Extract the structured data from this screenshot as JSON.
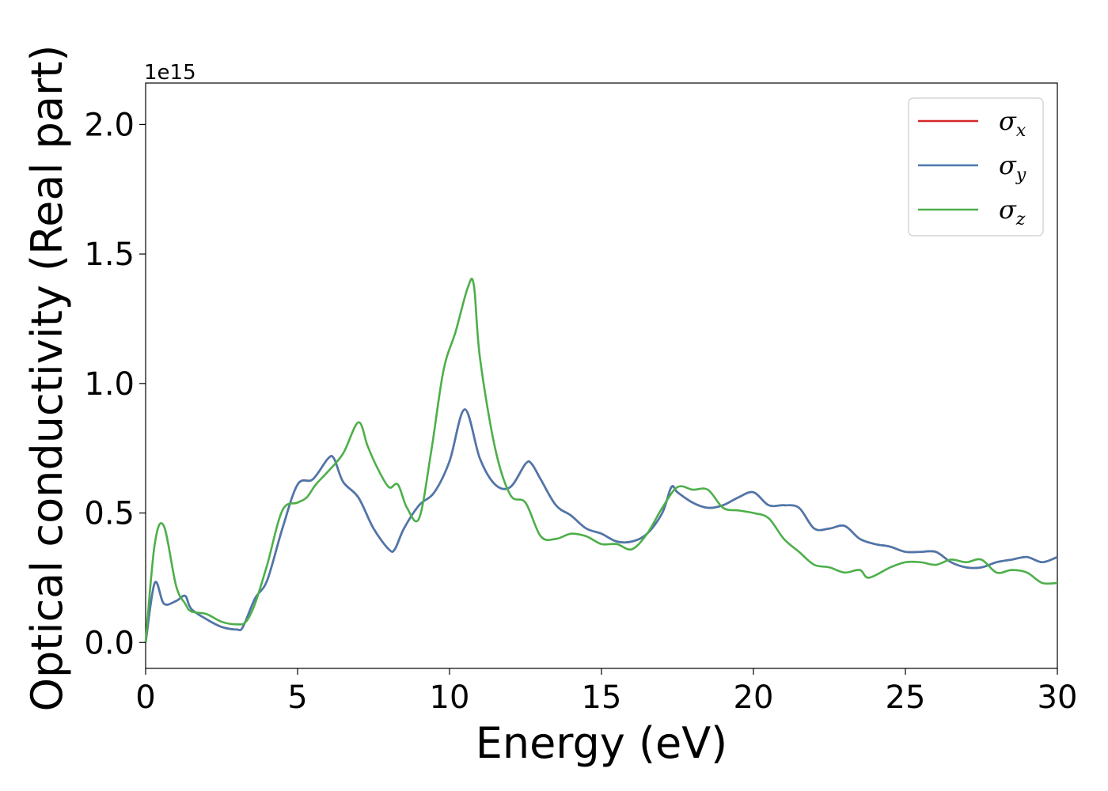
{
  "chart_data": {
    "type": "line",
    "title": "",
    "xlabel": "Energy (eV)",
    "ylabel": "Optical conductivity (Real part)",
    "y_offset_label": "1e15",
    "xlim": [
      0,
      30
    ],
    "ylim": [
      -0.1,
      2.16
    ],
    "xticks": [
      0,
      5,
      10,
      15,
      20,
      25,
      30
    ],
    "xtick_labels": [
      "0",
      "5",
      "10",
      "15",
      "20",
      "25",
      "30"
    ],
    "yticks": [
      0.0,
      0.5,
      1.0,
      1.5,
      2.0
    ],
    "ytick_labels": [
      "0.0",
      "0.5",
      "1.0",
      "1.5",
      "2.0"
    ],
    "grid": false,
    "legend_position": "top-right",
    "series": [
      {
        "name": "σx",
        "legend_base": "σ",
        "legend_sub": "x",
        "color": "#d62728",
        "x": [
          0,
          0.3,
          0.6,
          1.0,
          1.3,
          1.5,
          2.0,
          2.5,
          3.0,
          3.2,
          3.6,
          4.0,
          4.5,
          5.0,
          5.5,
          6.0,
          6.2,
          6.5,
          7.0,
          7.5,
          8.0,
          8.2,
          8.5,
          9.0,
          9.5,
          10.0,
          10.5,
          11.0,
          11.5,
          12.0,
          12.5,
          12.7,
          13.0,
          13.5,
          14.0,
          14.5,
          15.0,
          15.5,
          16.0,
          16.5,
          17.0,
          17.3,
          17.5,
          18.0,
          18.5,
          19.0,
          19.5,
          20.0,
          20.5,
          21.0,
          21.5,
          22.0,
          22.5,
          23.0,
          23.5,
          24.0,
          24.5,
          25.0,
          25.5,
          26.0,
          26.5,
          27.0,
          27.5,
          28.0,
          28.5,
          29.0,
          29.5,
          30.0
        ],
        "values": [
          0.0,
          0.23,
          0.15,
          0.16,
          0.18,
          0.13,
          0.09,
          0.06,
          0.05,
          0.06,
          0.17,
          0.24,
          0.44,
          0.61,
          0.63,
          0.71,
          0.71,
          0.62,
          0.56,
          0.44,
          0.36,
          0.36,
          0.44,
          0.53,
          0.58,
          0.7,
          0.9,
          0.71,
          0.61,
          0.6,
          0.69,
          0.69,
          0.63,
          0.53,
          0.49,
          0.44,
          0.42,
          0.39,
          0.39,
          0.42,
          0.5,
          0.6,
          0.58,
          0.54,
          0.52,
          0.53,
          0.56,
          0.58,
          0.53,
          0.53,
          0.52,
          0.44,
          0.44,
          0.45,
          0.4,
          0.38,
          0.37,
          0.35,
          0.35,
          0.35,
          0.31,
          0.29,
          0.29,
          0.31,
          0.32,
          0.33,
          0.31,
          0.33
        ]
      },
      {
        "name": "σy",
        "legend_base": "σ",
        "legend_sub": "y",
        "color": "#4a78ad",
        "x": [
          0,
          0.3,
          0.6,
          1.0,
          1.3,
          1.5,
          2.0,
          2.5,
          3.0,
          3.2,
          3.6,
          4.0,
          4.5,
          5.0,
          5.5,
          6.0,
          6.2,
          6.5,
          7.0,
          7.5,
          8.0,
          8.2,
          8.5,
          9.0,
          9.5,
          10.0,
          10.5,
          11.0,
          11.5,
          12.0,
          12.5,
          12.7,
          13.0,
          13.5,
          14.0,
          14.5,
          15.0,
          15.5,
          16.0,
          16.5,
          17.0,
          17.3,
          17.5,
          18.0,
          18.5,
          19.0,
          19.5,
          20.0,
          20.5,
          21.0,
          21.5,
          22.0,
          22.5,
          23.0,
          23.5,
          24.0,
          24.5,
          25.0,
          25.5,
          26.0,
          26.5,
          27.0,
          27.5,
          28.0,
          28.5,
          29.0,
          29.5,
          30.0
        ],
        "values": [
          0.0,
          0.23,
          0.15,
          0.16,
          0.18,
          0.13,
          0.09,
          0.06,
          0.05,
          0.06,
          0.17,
          0.24,
          0.44,
          0.61,
          0.63,
          0.71,
          0.71,
          0.62,
          0.56,
          0.44,
          0.36,
          0.36,
          0.44,
          0.53,
          0.58,
          0.7,
          0.9,
          0.71,
          0.61,
          0.6,
          0.69,
          0.69,
          0.63,
          0.53,
          0.49,
          0.44,
          0.42,
          0.39,
          0.39,
          0.42,
          0.5,
          0.6,
          0.58,
          0.54,
          0.52,
          0.53,
          0.56,
          0.58,
          0.53,
          0.53,
          0.52,
          0.44,
          0.44,
          0.45,
          0.4,
          0.38,
          0.37,
          0.35,
          0.35,
          0.35,
          0.31,
          0.29,
          0.29,
          0.31,
          0.32,
          0.33,
          0.31,
          0.33
        ]
      },
      {
        "name": "σz",
        "legend_base": "σ",
        "legend_sub": "z",
        "color": "#4daf4a",
        "x": [
          0,
          0.3,
          0.6,
          1.0,
          1.3,
          1.5,
          2.0,
          2.5,
          3.0,
          3.3,
          3.6,
          4.0,
          4.5,
          5.0,
          5.3,
          5.6,
          6.0,
          6.5,
          7.0,
          7.3,
          7.6,
          8.0,
          8.3,
          8.6,
          9.0,
          9.4,
          9.8,
          10.2,
          10.6,
          10.8,
          11.0,
          11.5,
          12.0,
          12.5,
          13.0,
          13.5,
          14.0,
          14.5,
          15.0,
          15.5,
          16.0,
          16.5,
          17.0,
          17.5,
          18.0,
          18.5,
          19.0,
          19.5,
          20.0,
          20.5,
          21.0,
          21.5,
          22.0,
          22.5,
          23.0,
          23.5,
          23.8,
          24.5,
          25.0,
          25.5,
          26.0,
          26.5,
          27.0,
          27.5,
          28.0,
          28.5,
          29.0,
          29.5,
          30.0
        ],
        "values": [
          0.0,
          0.38,
          0.45,
          0.22,
          0.15,
          0.12,
          0.11,
          0.08,
          0.07,
          0.08,
          0.15,
          0.3,
          0.51,
          0.54,
          0.56,
          0.61,
          0.66,
          0.73,
          0.85,
          0.76,
          0.68,
          0.6,
          0.61,
          0.52,
          0.48,
          0.74,
          1.05,
          1.2,
          1.37,
          1.38,
          1.1,
          0.75,
          0.57,
          0.54,
          0.41,
          0.4,
          0.42,
          0.41,
          0.38,
          0.38,
          0.36,
          0.42,
          0.52,
          0.6,
          0.59,
          0.59,
          0.52,
          0.51,
          0.5,
          0.48,
          0.4,
          0.35,
          0.3,
          0.29,
          0.27,
          0.28,
          0.25,
          0.29,
          0.31,
          0.31,
          0.3,
          0.32,
          0.31,
          0.32,
          0.27,
          0.28,
          0.27,
          0.23,
          0.23
        ]
      }
    ]
  }
}
